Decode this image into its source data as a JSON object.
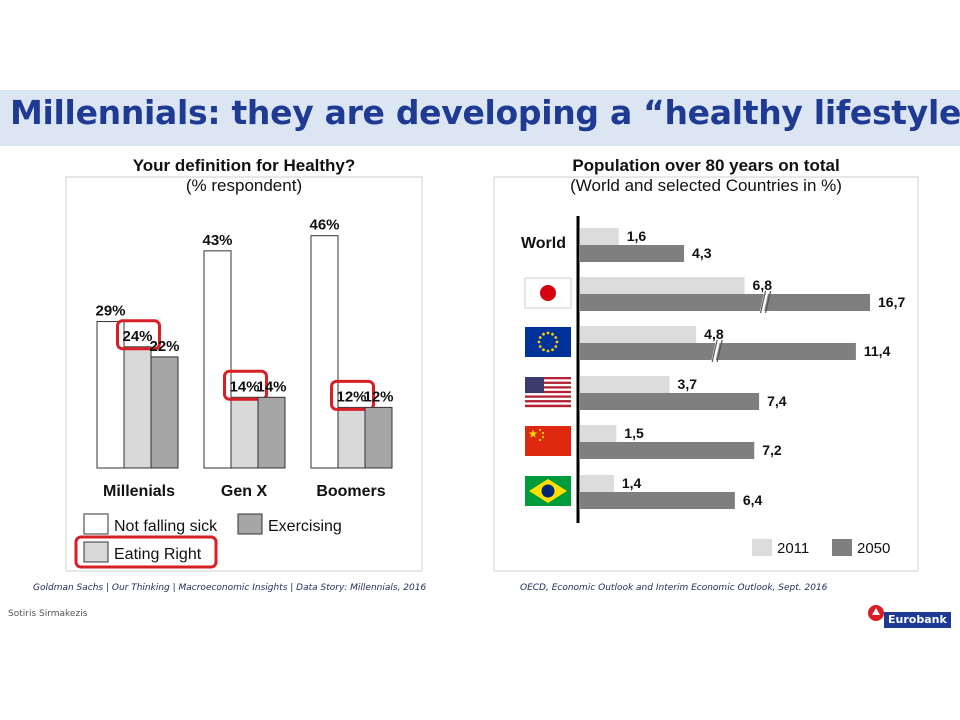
{
  "page": {
    "title": "Millennials: they are developing a “healthy lifestyle”",
    "author": "Sotiris Sirmakezis",
    "logo_text": "Eurobank",
    "colors": {
      "title": "#1f3a93",
      "title_band": "#dce6f2",
      "highlight": "#d81f26"
    }
  },
  "left_panel": {
    "title": "Your definition for Healthy?",
    "subtitle": "(% respondent)",
    "source": "Goldman Sachs | Our Thinking | Macroeconomic Insights | Data Story: Millennials, 2016"
  },
  "right_panel": {
    "title": "Population over 80 years on total",
    "subtitle": "(World and selected Countries in %)",
    "source": "OECD, Economic Outlook and Interim Economic Outlook, Sept. 2016"
  },
  "chart_data": [
    {
      "type": "bar",
      "title": "Your definition for Healthy?",
      "subtitle": "(% respondent)",
      "categories": [
        "Millenials",
        "Gen X",
        "Boomers"
      ],
      "series": [
        {
          "name": "Not falling sick",
          "values": [
            29,
            43,
            46
          ],
          "labels": [
            "29%",
            "43%",
            "46%"
          ],
          "color": "#ffffff"
        },
        {
          "name": "Eating Right",
          "values": [
            24,
            14,
            12
          ],
          "labels": [
            "24%",
            "14%",
            "12%"
          ],
          "color": "#d9d9d9",
          "highlighted": true
        },
        {
          "name": "Exercising",
          "values": [
            22,
            14,
            12
          ],
          "labels": [
            "22%",
            "14%",
            "12%"
          ],
          "color": "#a6a6a6"
        }
      ],
      "ylim": [
        0,
        50
      ],
      "grid": false,
      "legend": "bottom",
      "highlight_legend": "Eating Right"
    },
    {
      "type": "bar",
      "orientation": "horizontal",
      "title": "Population over 80 years on total",
      "subtitle": "(World and selected Countries in %)",
      "categories": [
        "World",
        "Japan",
        "European Union",
        "United States",
        "China",
        "Brazil"
      ],
      "category_labels": [
        "World",
        "",
        "",
        "",
        "",
        ""
      ],
      "flags": [
        "",
        "japan-flag",
        "eu-flag",
        "us-flag",
        "china-flag",
        "brazil-flag"
      ],
      "series": [
        {
          "name": "2011",
          "values": [
            1.6,
            6.8,
            4.8,
            3.7,
            1.5,
            1.4
          ],
          "labels": [
            "1,6",
            "6,8",
            "4,8",
            "3,7",
            "1,5",
            "1,4"
          ],
          "color": "#dcdcdc"
        },
        {
          "name": "2050",
          "values": [
            4.3,
            16.7,
            11.4,
            7.4,
            7.2,
            6.4
          ],
          "labels": [
            "4,3",
            "16,7",
            "11,4",
            "7,4",
            "7,2",
            "6,4"
          ],
          "color": "#7f7f7f"
        }
      ],
      "broken_axis": [
        "Japan",
        "European Union"
      ],
      "grid": false,
      "legend": "bottom-right"
    }
  ]
}
